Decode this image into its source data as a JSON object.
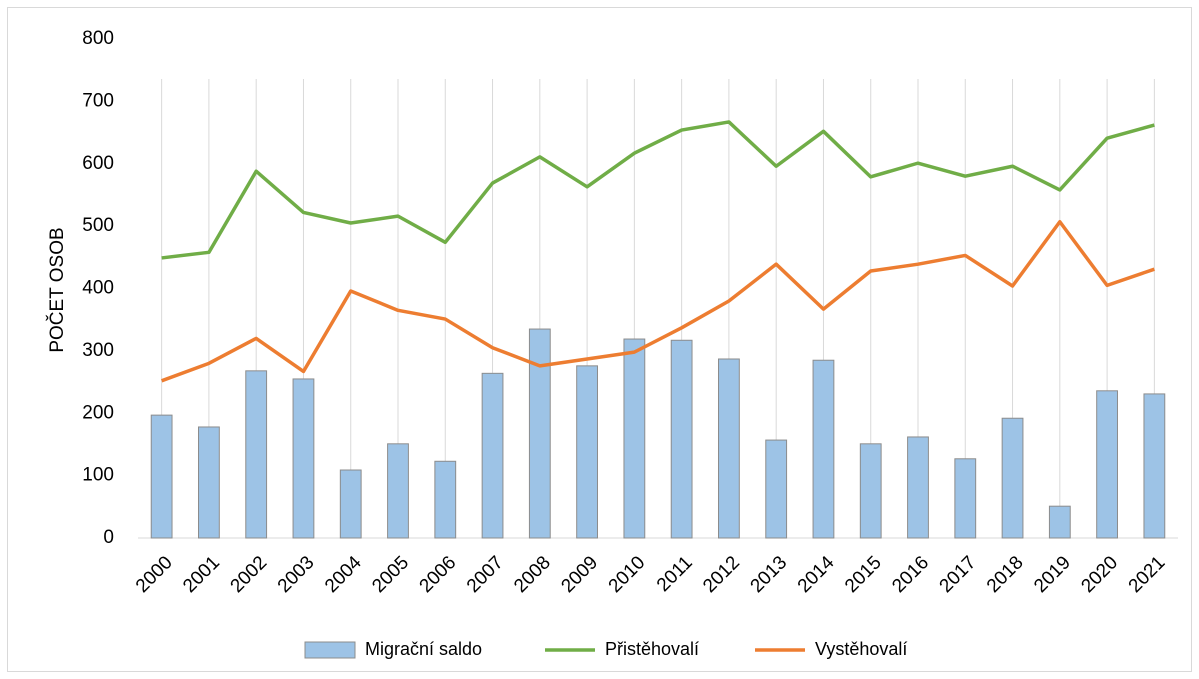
{
  "chart_data": {
    "type": "bar_line",
    "y_label": "POČET OSOB",
    "categories": [
      "2000",
      "2001",
      "2002",
      "2003",
      "2004",
      "2005",
      "2006",
      "2007",
      "2008",
      "2009",
      "2010",
      "2011",
      "2012",
      "2013",
      "2014",
      "2015",
      "2016",
      "2017",
      "2018",
      "2019",
      "2020",
      "2021"
    ],
    "series": [
      {
        "name": "Migrační saldo",
        "type": "bar",
        "color": "#9dc3e6",
        "values": [
          197,
          178,
          268,
          255,
          109,
          151,
          123,
          264,
          335,
          276,
          319,
          317,
          287,
          157,
          285,
          151,
          162,
          127,
          192,
          51,
          236,
          231
        ]
      },
      {
        "name": "Přistěhovalí",
        "type": "line",
        "color": "#70ad47",
        "values": [
          449,
          458,
          588,
          522,
          505,
          516,
          474,
          569,
          611,
          563,
          617,
          654,
          667,
          596,
          652,
          579,
          601,
          580,
          596,
          558,
          641,
          662
        ]
      },
      {
        "name": "Vystěhovalí",
        "type": "line",
        "color": "#ed7d31",
        "values": [
          252,
          280,
          320,
          267,
          396,
          365,
          351,
          305,
          276,
          287,
          298,
          337,
          380,
          439,
          367,
          428,
          439,
          453,
          404,
          507,
          405,
          431
        ]
      }
    ],
    "ylim": [
      0,
      800
    ],
    "yticks": [
      0,
      100,
      200,
      300,
      400,
      500,
      600,
      700,
      800
    ],
    "grid": "x",
    "legend": "bottom"
  }
}
